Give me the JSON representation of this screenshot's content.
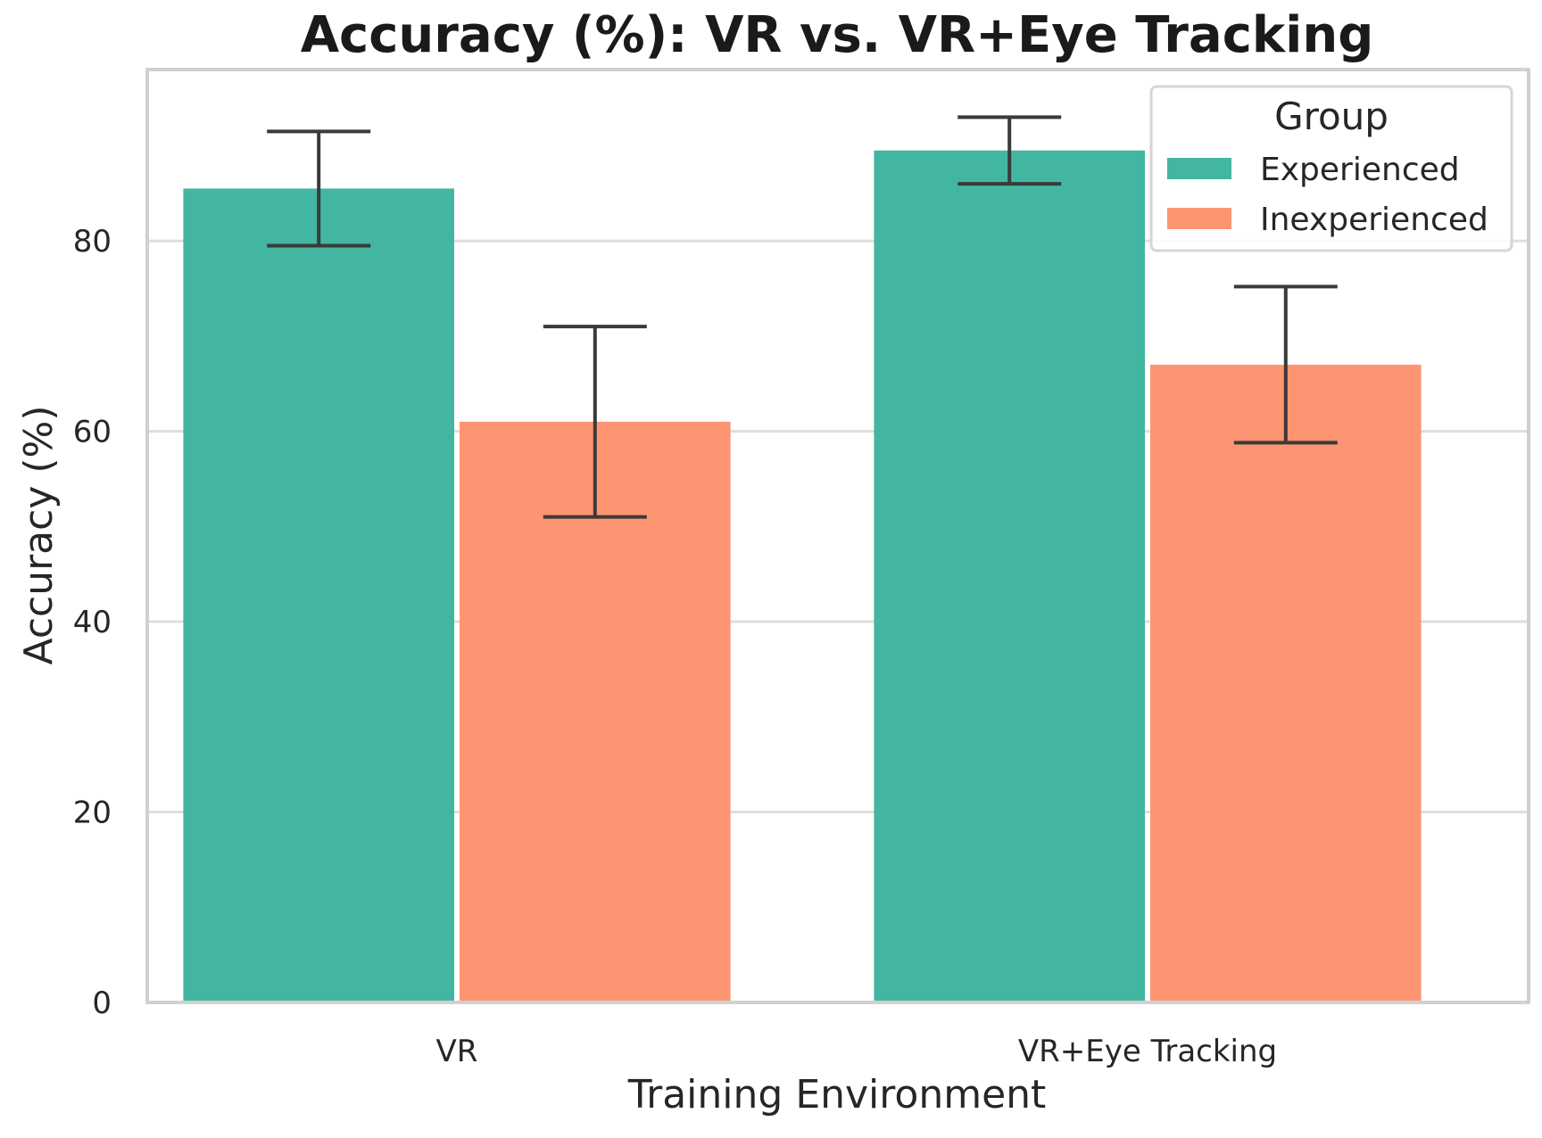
{
  "chart_data": {
    "type": "bar",
    "title": "Accuracy (%): VR vs. VR+Eye Tracking",
    "xlabel": "Training Environment",
    "ylabel": "Accuracy (%)",
    "categories": [
      "VR",
      "VR+Eye Tracking"
    ],
    "ylim": [
      0,
      98
    ],
    "yticks": [
      "0",
      "20",
      "40",
      "60",
      "80"
    ],
    "grid": true,
    "legend": {
      "title": "Group",
      "position": "top-right"
    },
    "series": [
      {
        "name": "Experienced",
        "color": "#42b6a1",
        "values": [
          85.5,
          89.5
        ],
        "errors": [
          6.0,
          3.5
        ]
      },
      {
        "name": "Inexperienced",
        "color": "#fd9572",
        "values": [
          61.0,
          67.0
        ],
        "errors": [
          10.0,
          8.2
        ]
      }
    ]
  }
}
